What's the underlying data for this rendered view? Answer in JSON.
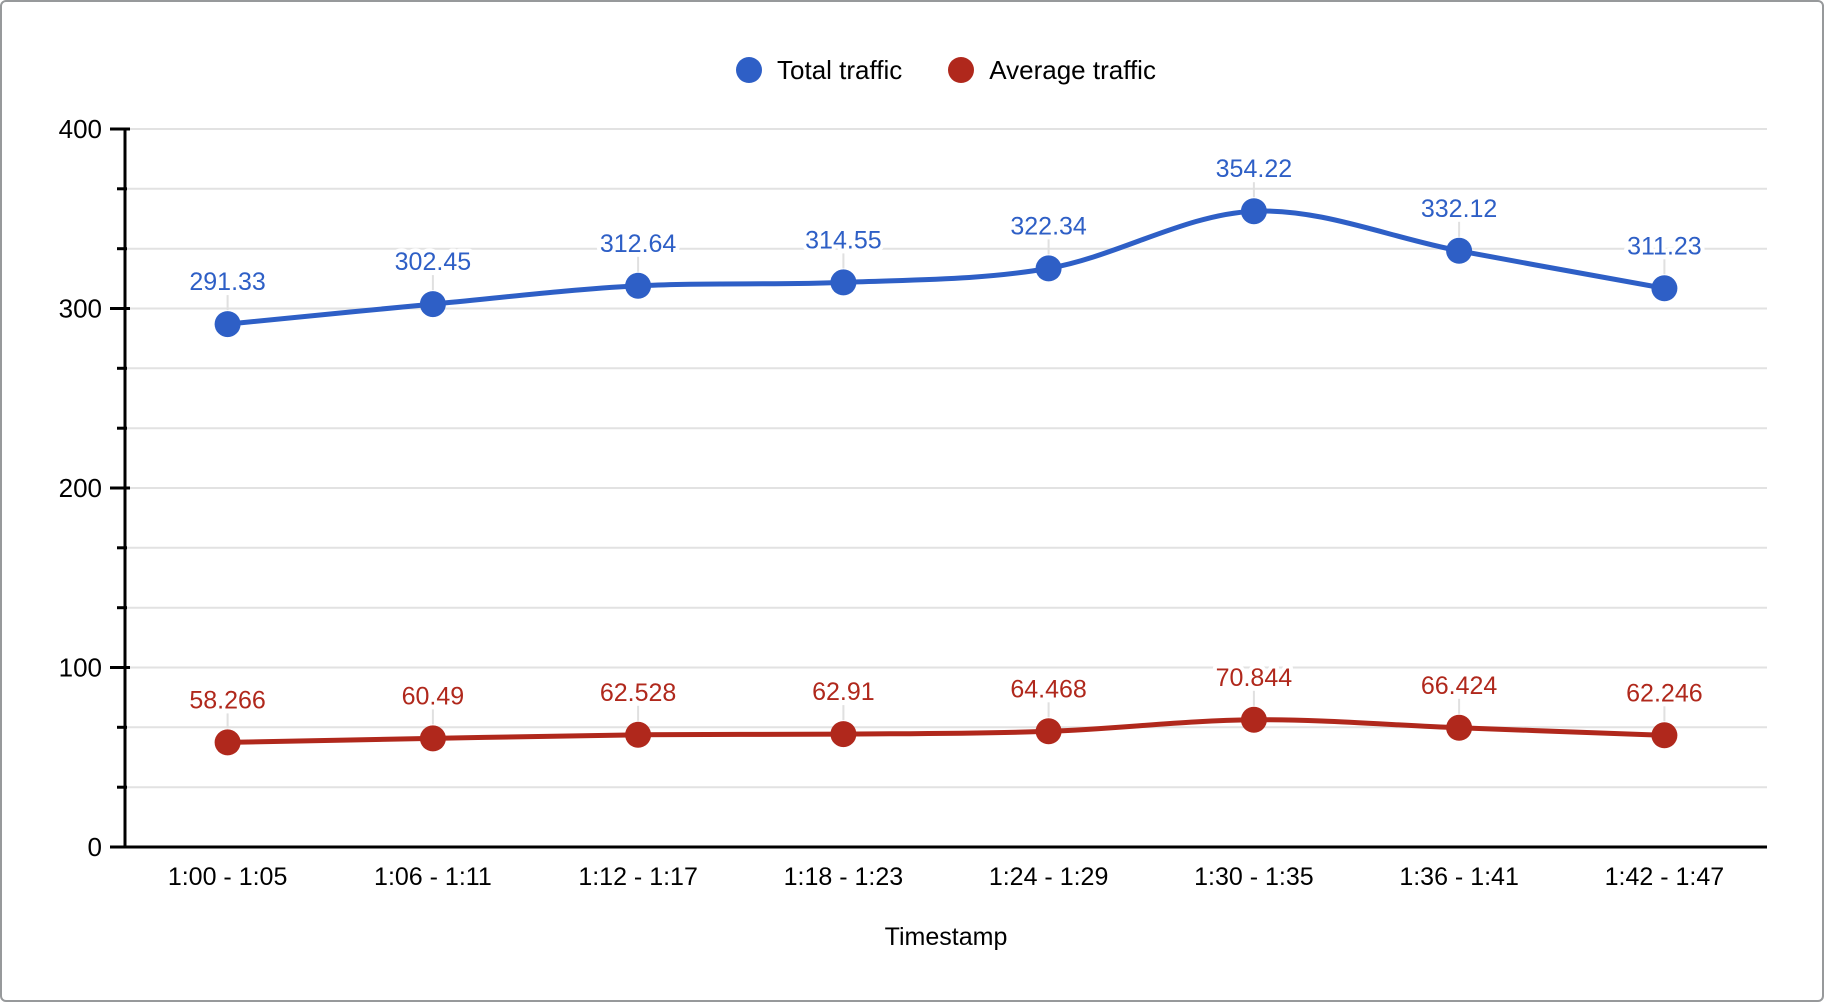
{
  "chart_data": {
    "type": "line",
    "title": "",
    "xlabel": "Timestamp",
    "ylabel": "",
    "categories": [
      "1:00 - 1:05",
      "1:06 - 1:11",
      "1:12 - 1:17",
      "1:18 - 1:23",
      "1:24 - 1:29",
      "1:30 - 1:35",
      "1:36 - 1:41",
      "1:42 - 1:47"
    ],
    "series": [
      {
        "name": "Total traffic",
        "color": "#2E5FC6",
        "values": [
          291.33,
          302.45,
          312.64,
          314.55,
          322.34,
          354.22,
          332.12,
          311.23
        ]
      },
      {
        "name": "Average traffic",
        "color": "#B0281C",
        "values": [
          58.266,
          60.49,
          62.528,
          62.91,
          64.468,
          70.844,
          66.424,
          62.246
        ]
      }
    ],
    "ylim": [
      0,
      400
    ],
    "yticks": [
      0,
      100,
      200,
      300,
      400
    ],
    "minor_divisions_per_major": 3,
    "grid": true,
    "smooth_lines": true,
    "point_labels": true,
    "legend_position": "top"
  },
  "colors": {
    "background": "#FFFFFF",
    "frame_border": "#97999B",
    "gridline": "#E2E2E2",
    "axis": "#000000",
    "axis_text": "#000000",
    "label_leader": "#E0E0E0",
    "series_blue": "#2E5FC6",
    "series_red": "#B0281C"
  }
}
